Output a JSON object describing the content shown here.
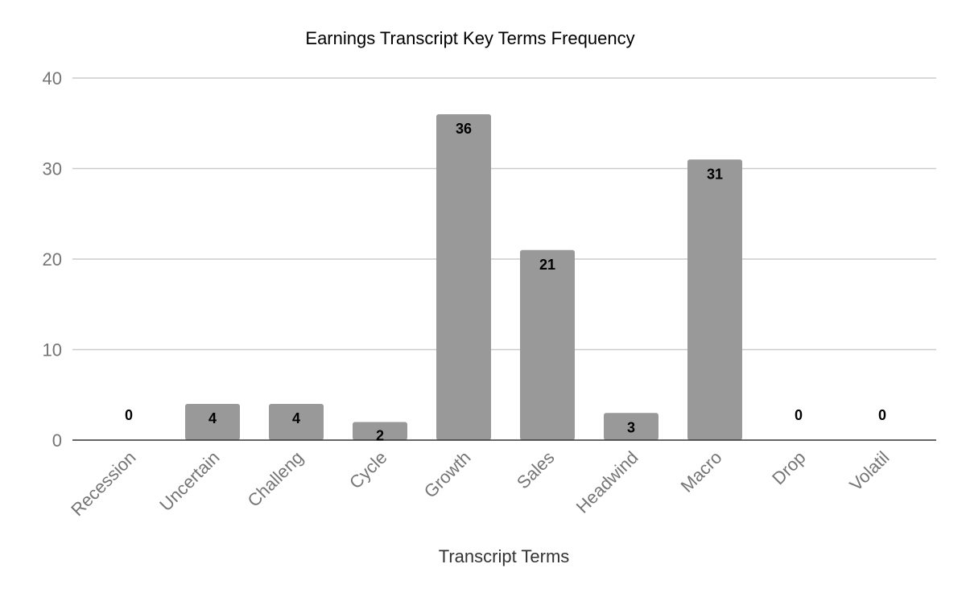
{
  "chart_data": {
    "type": "bar",
    "title": "Earnings Transcript Key Terms Frequency",
    "xlabel": "Transcript Terms",
    "ylabel": "",
    "categories": [
      "Recession",
      "Uncertain",
      "Challeng",
      "Cycle",
      "Growth",
      "Sales",
      "Headwind",
      "Macro",
      "Drop",
      "Volatil"
    ],
    "values": [
      0,
      4,
      4,
      2,
      36,
      21,
      3,
      31,
      0,
      0
    ],
    "ylim": [
      0,
      40
    ],
    "yticks": [
      0,
      10,
      20,
      30,
      40
    ],
    "grid": true,
    "legend": "none",
    "colors": {
      "bar": "#999999",
      "grid": "#cccccc",
      "axis": "#333333",
      "tick_text": "#757575"
    }
  }
}
